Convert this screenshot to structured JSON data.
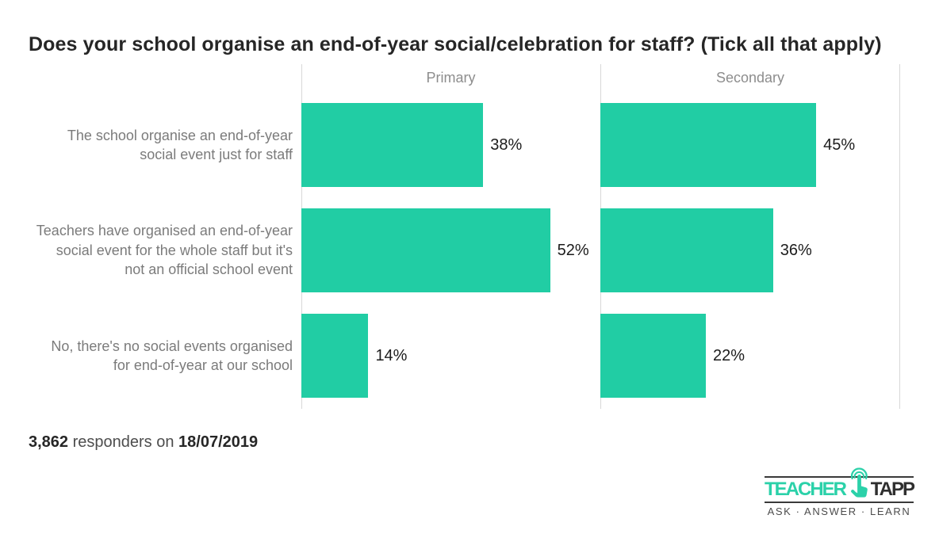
{
  "title": "Does your school organise an end-of-year social/celebration for staff? (Tick all that apply)",
  "chart_data": {
    "type": "bar",
    "orientation": "horizontal",
    "title": "Does your school organise an end-of-year social/celebration for staff? (Tick all that apply)",
    "categories": [
      "The school organise an end-of-year social event just for staff",
      "Teachers have organised an end-of-year social event for the whole staff but it's not an official school event",
      "No, there's no social events organised for end-of-year at our school"
    ],
    "series": [
      {
        "name": "Primary",
        "values": [
          38,
          52,
          14
        ]
      },
      {
        "name": "Secondary",
        "values": [
          45,
          36,
          22
        ]
      }
    ],
    "value_suffix": "%",
    "xlim": [
      0,
      62.5
    ],
    "bar_color": "#21cda4",
    "grid": false,
    "legend_position": "panel-headers"
  },
  "footer": {
    "count": "3,862",
    "text": " responders on ",
    "date": "18/07/2019"
  },
  "logo": {
    "brand_left": "TEACHER",
    "brand_right": "TAPP",
    "tagline": "ASK · ANSWER · LEARN",
    "icon": "tap-hand-icon",
    "teal": "#2bd1a9",
    "dark": "#3a3a3a"
  }
}
